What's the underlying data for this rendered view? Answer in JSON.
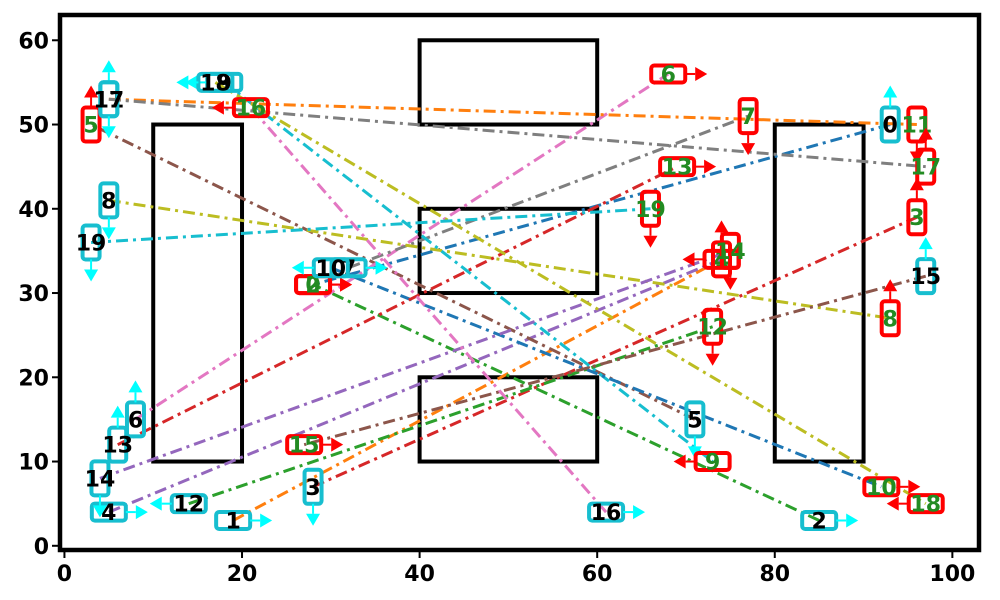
{
  "chart_data": {
    "type": "scatter",
    "title": "",
    "xlabel": "",
    "ylabel": "",
    "xlim": [
      -0.5,
      103
    ],
    "ylim": [
      -0.5,
      63
    ],
    "grid": false,
    "x_ticks": [
      "0",
      "20",
      "40",
      "60",
      "80",
      "100"
    ],
    "y_ticks": [
      "0",
      "10",
      "20",
      "30",
      "40",
      "50",
      "60"
    ],
    "x_tick_values": [
      0,
      20,
      40,
      60,
      80,
      100
    ],
    "y_tick_values": [
      0,
      10,
      20,
      30,
      40,
      50,
      60
    ],
    "obstacles": [
      {
        "x0": 10,
        "y0": 10,
        "x1": 20,
        "y1": 50
      },
      {
        "x0": 80,
        "y0": 10,
        "x1": 90,
        "y1": 50
      },
      {
        "x0": 40,
        "y0": 50,
        "x1": 60,
        "y1": 60
      },
      {
        "x0": 40,
        "y0": 30,
        "x1": 60,
        "y1": 40
      },
      {
        "x0": 40,
        "y0": 10,
        "x1": 60,
        "y1": 20
      }
    ],
    "colors": {
      "start_marker": "#17becf",
      "start_arrow": "#00ffff",
      "start_text": "#000000",
      "goal_marker": "#ff0000",
      "goal_arrow": "#ff0000",
      "goal_text": "#228b22"
    },
    "paths": [
      {
        "label": "0",
        "color": "#1f77b4",
        "start": [
          93,
          50
        ],
        "goal": [
          28,
          31
        ],
        "start_dir": "up",
        "goal_dir": "right"
      },
      {
        "label": "1",
        "color": "#ff7f0e",
        "start": [
          19,
          3
        ],
        "goal": [
          74,
          34
        ],
        "start_dir": "right",
        "goal_dir": "up"
      },
      {
        "label": "2",
        "color": "#2ca02c",
        "start": [
          85,
          3
        ],
        "goal": [
          28,
          31
        ],
        "start_dir": "right",
        "goal_dir": "right"
      },
      {
        "label": "3",
        "color": "#d62728",
        "start": [
          28,
          7
        ],
        "goal": [
          96,
          39
        ],
        "start_dir": "down",
        "goal_dir": "up"
      },
      {
        "label": "4",
        "color": "#9467bd",
        "start": [
          5,
          4
        ],
        "goal": [
          74,
          34
        ],
        "start_dir": "right",
        "goal_dir": "left"
      },
      {
        "label": "5",
        "color": "#8c564b",
        "start": [
          71,
          15
        ],
        "goal": [
          3,
          50
        ],
        "start_dir": "down",
        "goal_dir": "up"
      },
      {
        "label": "6",
        "color": "#e377c2",
        "start": [
          8,
          15
        ],
        "goal": [
          68,
          56
        ],
        "start_dir": "up",
        "goal_dir": "right"
      },
      {
        "label": "7",
        "color": "#7f7f7f",
        "start": [
          32,
          33
        ],
        "goal": [
          77,
          51
        ],
        "start_dir": "right",
        "goal_dir": "down"
      },
      {
        "label": "8",
        "color": "#bcbd22",
        "start": [
          5,
          41
        ],
        "goal": [
          93,
          27
        ],
        "start_dir": "down",
        "goal_dir": "up"
      },
      {
        "label": "9",
        "color": "#17becf",
        "start": [
          18,
          55
        ],
        "goal": [
          73,
          10
        ],
        "start_dir": "left",
        "goal_dir": "left"
      },
      {
        "label": "10",
        "color": "#1f77b4",
        "start": [
          30,
          33
        ],
        "goal": [
          92,
          7
        ],
        "start_dir": "left",
        "goal_dir": "right"
      },
      {
        "label": "11",
        "color": "#ff7f0e",
        "start": [
          5,
          53
        ],
        "goal": [
          96,
          50
        ],
        "start_dir": "up",
        "goal_dir": "down"
      },
      {
        "label": "12",
        "color": "#2ca02c",
        "start": [
          14,
          5
        ],
        "goal": [
          73,
          26
        ],
        "start_dir": "left",
        "goal_dir": "down"
      },
      {
        "label": "13",
        "color": "#d62728",
        "start": [
          6,
          12
        ],
        "goal": [
          69,
          45
        ],
        "start_dir": "up",
        "goal_dir": "right"
      },
      {
        "label": "14",
        "color": "#9467bd",
        "start": [
          4,
          8
        ],
        "goal": [
          75,
          35
        ],
        "start_dir": "down",
        "goal_dir": "down"
      },
      {
        "label": "15",
        "color": "#8c564b",
        "start": [
          97,
          32
        ],
        "goal": [
          27,
          12
        ],
        "start_dir": "up",
        "goal_dir": "right"
      },
      {
        "label": "16",
        "color": "#e377c2",
        "start": [
          61,
          4
        ],
        "goal": [
          21,
          52
        ],
        "start_dir": "right",
        "goal_dir": "left"
      },
      {
        "label": "17",
        "color": "#7f7f7f",
        "start": [
          5,
          53
        ],
        "goal": [
          97,
          45
        ],
        "start_dir": "down",
        "goal_dir": "up"
      },
      {
        "label": "18",
        "color": "#bcbd22",
        "start": [
          17,
          55
        ],
        "goal": [
          97,
          5
        ],
        "start_dir": "left",
        "goal_dir": "left"
      },
      {
        "label": "19",
        "color": "#17becf",
        "start": [
          3,
          36
        ],
        "goal": [
          66,
          40
        ],
        "start_dir": "down",
        "goal_dir": "down"
      }
    ]
  }
}
